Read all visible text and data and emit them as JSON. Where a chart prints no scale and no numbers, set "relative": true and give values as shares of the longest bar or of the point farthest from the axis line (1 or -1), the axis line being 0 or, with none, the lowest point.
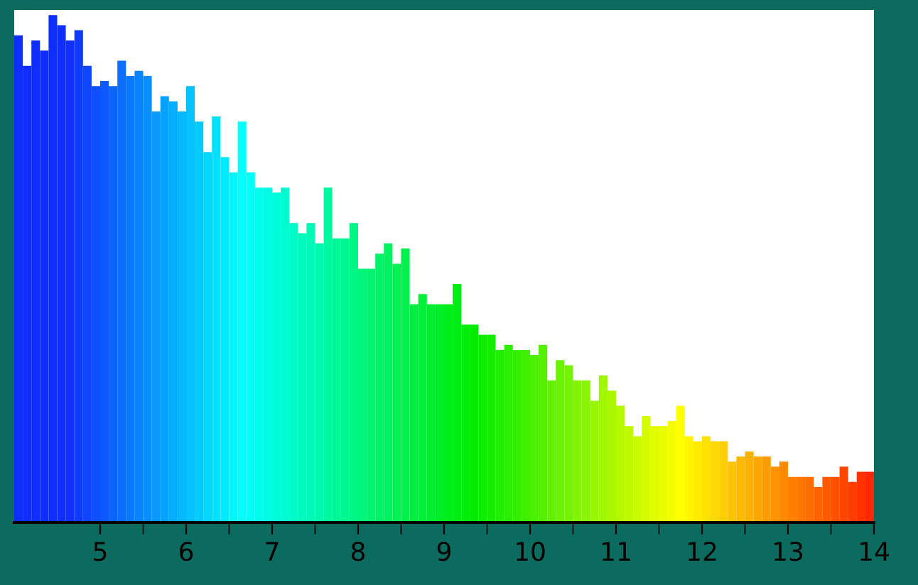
{
  "chart_data": {
    "type": "bar",
    "relative": true,
    "x": [
      4.05,
      4.15,
      4.25,
      4.35,
      4.45,
      4.55,
      4.65,
      4.75,
      4.85,
      4.95,
      5.05,
      5.15,
      5.25,
      5.35,
      5.45,
      5.55,
      5.65,
      5.75,
      5.85,
      5.95,
      6.05,
      6.15,
      6.25,
      6.35,
      6.45,
      6.55,
      6.65,
      6.75,
      6.85,
      6.95,
      7.05,
      7.15,
      7.25,
      7.35,
      7.45,
      7.55,
      7.65,
      7.75,
      7.85,
      7.95,
      8.05,
      8.15,
      8.25,
      8.35,
      8.45,
      8.55,
      8.65,
      8.75,
      8.85,
      8.95,
      9.05,
      9.15,
      9.25,
      9.35,
      9.45,
      9.55,
      9.65,
      9.75,
      9.85,
      9.95,
      10.05,
      10.15,
      10.25,
      10.35,
      10.45,
      10.55,
      10.65,
      10.75,
      10.85,
      10.95,
      11.05,
      11.15,
      11.25,
      11.35,
      11.45,
      11.55,
      11.65,
      11.75,
      11.85,
      11.95,
      12.05,
      12.15,
      12.25,
      12.35,
      12.45,
      12.55,
      12.65,
      12.75,
      12.85,
      12.95,
      13.05,
      13.15,
      13.25,
      13.35,
      13.45,
      13.55,
      13.65,
      13.75,
      13.85,
      13.95
    ],
    "values": [
      0.96,
      0.9,
      0.95,
      0.93,
      1,
      0.98,
      0.95,
      0.97,
      0.9,
      0.86,
      0.87,
      0.86,
      0.91,
      0.88,
      0.89,
      0.88,
      0.81,
      0.84,
      0.83,
      0.81,
      0.86,
      0.79,
      0.73,
      0.8,
      0.72,
      0.69,
      0.79,
      0.69,
      0.66,
      0.66,
      0.65,
      0.66,
      0.59,
      0.57,
      0.59,
      0.55,
      0.66,
      0.56,
      0.56,
      0.59,
      0.5,
      0.5,
      0.53,
      0.55,
      0.51,
      0.54,
      0.43,
      0.45,
      0.43,
      0.43,
      0.43,
      0.47,
      0.39,
      0.39,
      0.37,
      0.37,
      0.34,
      0.35,
      0.34,
      0.34,
      0.33,
      0.35,
      0.28,
      0.32,
      0.31,
      0.28,
      0.28,
      0.24,
      0.29,
      0.26,
      0.23,
      0.19,
      0.17,
      0.21,
      0.19,
      0.19,
      0.2,
      0.23,
      0.17,
      0.16,
      0.17,
      0.16,
      0.16,
      0.12,
      0.13,
      0.14,
      0.13,
      0.13,
      0.11,
      0.12,
      0.09,
      0.09,
      0.09,
      0.07,
      0.09,
      0.09,
      0.11,
      0.08,
      0.1,
      0.1
    ],
    "colors": [
      "#0d2eff",
      "#0d2eff",
      "#0d2eff",
      "#0d2eff",
      "#0d2eff",
      "#0d2eff",
      "#1030ff",
      "#0f3aff",
      "#0e45ff",
      "#0e4fff",
      "#0d59ff",
      "#0c64ff",
      "#0b6eff",
      "#0a78ff",
      "#0a83ff",
      "#098dff",
      "#0898ff",
      "#07a2ff",
      "#06acff",
      "#06b7ff",
      "#05c1ff",
      "#04cbff",
      "#03d6ff",
      "#02e0ff",
      "#02eaff",
      "#01f5ff",
      "#00ffff",
      "#00fef6",
      "#00feec",
      "#00fde3",
      "#00fcd9",
      "#00fbd0",
      "#00fbc6",
      "#00fabd",
      "#00f9b4",
      "#00f8aa",
      "#00f8a1",
      "#00f797",
      "#00f68e",
      "#00f684",
      "#00f57b",
      "#00f471",
      "#00f368",
      "#00f35e",
      "#00f255",
      "#00f14c",
      "#00f042",
      "#00f039",
      "#00ef2f",
      "#00ee26",
      "#00ed1c",
      "#00ed13",
      "#00ec09",
      "#00eb00",
      "#0bec00",
      "#15ed00",
      "#20ed00",
      "#2bee00",
      "#35ef00",
      "#40f000",
      "#4af100",
      "#55f100",
      "#60f200",
      "#6af300",
      "#75f400",
      "#80f500",
      "#8af500",
      "#95f600",
      "#9ff700",
      "#aaf800",
      "#b5f800",
      "#bff900",
      "#cafa00",
      "#d5fb00",
      "#dffc00",
      "#eafd00",
      "#f4fe00",
      "#ffff00",
      "#fff500",
      "#ffeb00",
      "#ffe200",
      "#ffd800",
      "#ffce00",
      "#ffc400",
      "#ffba00",
      "#ffb100",
      "#ffa700",
      "#ff9d00",
      "#ff9300",
      "#ff8a00",
      "#ff8000",
      "#ff7600",
      "#ff6c00",
      "#ff6300",
      "#ff5900",
      "#ff4f00",
      "#ff4500",
      "#ff3c00",
      "#ff3200",
      "#ff2800"
    ],
    "xlim": [
      4.0,
      14.0
    ],
    "xticks": [
      5,
      {
        "value": 5.5,
        "label": null
      },
      6,
      {
        "value": 6.5,
        "label": null
      },
      7,
      {
        "value": 7.5,
        "label": null
      },
      8,
      {
        "value": 8.5,
        "label": null
      },
      9,
      {
        "value": 9.5,
        "label": null
      },
      10,
      {
        "value": 10.5,
        "label": null
      },
      11,
      {
        "value": 11.5,
        "label": null
      },
      12,
      {
        "value": 12.5,
        "label": null
      },
      13,
      {
        "value": 13.5,
        "label": null
      },
      14
    ],
    "grid": false,
    "legend": false
  }
}
